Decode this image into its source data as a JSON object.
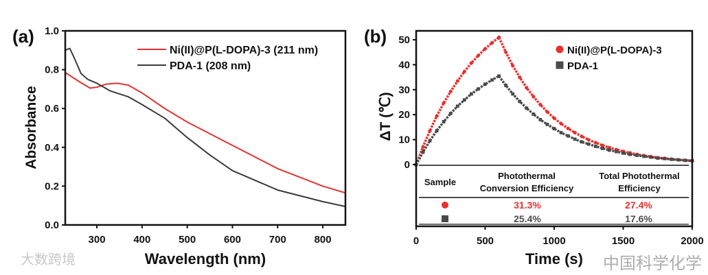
{
  "chart_data": [
    {
      "panel": "(a)",
      "type": "line",
      "xlabel": "Wavelength (nm)",
      "ylabel": "Absorbance",
      "xlim": [
        230,
        850
      ],
      "ylim": [
        0,
        1.0
      ],
      "xticks": [
        "300",
        "400",
        "500",
        "600",
        "700",
        "800"
      ],
      "yticks": [
        "0.0",
        "0.2",
        "0.4",
        "0.6",
        "0.8",
        "1.0"
      ],
      "legend_position": "top-right",
      "series": [
        {
          "name": "Ni(II)@P(L-DOPA)-3 (211 nm)",
          "color": "#e8302e",
          "x": [
            230,
            260,
            285,
            300,
            320,
            345,
            370,
            400,
            450,
            500,
            600,
            700,
            800,
            850
          ],
          "y": [
            0.785,
            0.74,
            0.705,
            0.71,
            0.725,
            0.73,
            0.72,
            0.68,
            0.6,
            0.53,
            0.41,
            0.29,
            0.2,
            0.165
          ]
        },
        {
          "name": "PDA-1 (208 nm)",
          "color": "#3a3a3a",
          "x": [
            230,
            240,
            250,
            265,
            280,
            300,
            330,
            370,
            400,
            450,
            500,
            550,
            600,
            700,
            800,
            850
          ],
          "y": [
            0.9,
            0.91,
            0.86,
            0.78,
            0.75,
            0.73,
            0.69,
            0.66,
            0.62,
            0.55,
            0.45,
            0.36,
            0.28,
            0.18,
            0.12,
            0.095
          ]
        }
      ]
    },
    {
      "panel": "(b)",
      "type": "scatter",
      "xlabel": "Time (s)",
      "ylabel": "ΔT (℃)",
      "xlim": [
        0,
        2000
      ],
      "ylim": [
        0,
        54
      ],
      "xticks": [
        "0",
        "500",
        "1000",
        "1500",
        "2000"
      ],
      "yticks": [
        "0",
        "10",
        "20",
        "30",
        "40",
        "50"
      ],
      "legend_position": "top-right",
      "series": [
        {
          "name": "Ni(II)@P(L-DOPA)-3",
          "color": "#e8302e",
          "marker": "circle",
          "y": [
            0,
            7.2,
            13.6,
            19.5,
            24.7,
            29.3,
            33.5,
            37.3,
            40.7,
            43.7,
            46.4,
            48.8,
            51,
            45.0,
            39.6,
            35.0,
            30.8,
            27.2,
            24.0,
            21.1,
            18.6,
            16.4,
            14.5,
            12.8,
            11.3,
            9.9,
            8.8,
            7.7,
            6.8,
            6.0,
            5.3,
            4.7,
            4.1,
            3.6,
            3.2,
            2.8,
            2.5,
            2.2,
            1.9,
            1.7,
            1.5
          ]
        },
        {
          "name": "PDA-1",
          "color": "#4a4a4a",
          "marker": "square",
          "y": [
            0,
            5.0,
            9.6,
            13.6,
            17.2,
            20.5,
            23.4,
            25.9,
            28.3,
            30.3,
            32.2,
            33.9,
            35.5,
            31.7,
            28.3,
            25.3,
            22.6,
            20.2,
            18.0,
            16.1,
            14.4,
            12.8,
            11.5,
            10.2,
            9.1,
            8.2,
            7.3,
            6.5,
            5.8,
            5.2,
            4.6,
            4.1,
            3.7,
            3.3,
            3.0,
            2.6,
            2.4,
            2.1,
            1.9,
            1.7,
            1.5
          ]
        }
      ],
      "x_step": 50,
      "table": {
        "headers": [
          "Sample",
          "Photothermal",
          "Conversion Efficiency",
          "Total Photothermal",
          "Efficiency"
        ],
        "rows": [
          {
            "marker": "circle",
            "color": "#e8302e",
            "pce": "31.3%",
            "tpe": "27.4%"
          },
          {
            "marker": "square",
            "color": "#4a4a4a",
            "pce": "25.4%",
            "tpe": "17.6%"
          }
        ]
      }
    }
  ],
  "watermarks": {
    "left": "大数跨境",
    "right": "中国科学化学"
  }
}
